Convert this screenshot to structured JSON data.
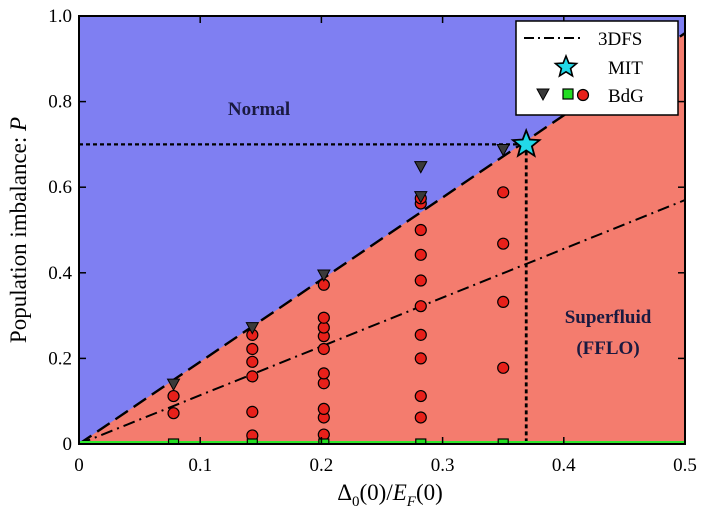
{
  "chart_data": {
    "type": "scatter",
    "xlabel_main": "Δ",
    "xlabel_sub": "0",
    "xlabel_mid": "(0)/",
    "xlabel_italic": "E",
    "xlabel_sub2": "F",
    "xlabel_end": "(0)",
    "ylabel_text": "Population imbalance: ",
    "ylabel_italic": "P",
    "xlim": [
      0,
      0.5
    ],
    "ylim": [
      0,
      1.0
    ],
    "x_ticks": [
      "0",
      "0.1",
      "0.2",
      "0.3",
      "0.4",
      "0.5"
    ],
    "y_ticks": [
      "0",
      "0.2",
      "0.4",
      "0.6",
      "0.8",
      "1.0"
    ],
    "colors": {
      "normal_region": "#7f7ff2",
      "superfluid_region": "#f47c6e",
      "green_line": "#2ee82e",
      "red_marker": "#e8201a",
      "triangle_marker": "#3a3a3a",
      "square_marker": "#22dd22",
      "star_marker": "#22d8e8"
    },
    "regions": {
      "normal": "Normal",
      "superfluid_line1": "Superfluid",
      "superfluid_line2": "(FFLO)"
    },
    "legend": {
      "position": "top-right",
      "entries": [
        "3DFS",
        "MIT",
        "BdG"
      ]
    },
    "boundary_line": {
      "x": [
        0,
        0.5
      ],
      "y": [
        0,
        0.96
      ]
    },
    "dfs_line": {
      "x": [
        0,
        0.5
      ],
      "y": [
        0,
        0.57
      ]
    },
    "mit_point": {
      "x": 0.369,
      "y": 0.7
    },
    "dotted_guides": {
      "x": 0.369,
      "y": 0.7
    },
    "series": [
      {
        "name": "BdG",
        "marker": "circle",
        "points": [
          [
            0.078,
            0.072
          ],
          [
            0.078,
            0.112
          ],
          [
            0.143,
            0.02
          ],
          [
            0.143,
            0.075
          ],
          [
            0.143,
            0.158
          ],
          [
            0.143,
            0.192
          ],
          [
            0.143,
            0.222
          ],
          [
            0.143,
            0.255
          ],
          [
            0.202,
            0.022
          ],
          [
            0.202,
            0.062
          ],
          [
            0.202,
            0.082
          ],
          [
            0.202,
            0.142
          ],
          [
            0.202,
            0.165
          ],
          [
            0.202,
            0.222
          ],
          [
            0.202,
            0.252
          ],
          [
            0.202,
            0.272
          ],
          [
            0.202,
            0.295
          ],
          [
            0.202,
            0.372
          ],
          [
            0.282,
            0.062
          ],
          [
            0.282,
            0.112
          ],
          [
            0.282,
            0.2
          ],
          [
            0.282,
            0.255
          ],
          [
            0.282,
            0.322
          ],
          [
            0.282,
            0.382
          ],
          [
            0.282,
            0.442
          ],
          [
            0.282,
            0.5
          ],
          [
            0.282,
            0.562
          ],
          [
            0.282,
            0.574
          ],
          [
            0.35,
            0.178
          ],
          [
            0.35,
            0.332
          ],
          [
            0.35,
            0.468
          ],
          [
            0.35,
            0.588
          ]
        ]
      },
      {
        "name": "BdG",
        "marker": "triangle",
        "points": [
          [
            0.078,
            0.14
          ],
          [
            0.143,
            0.272
          ],
          [
            0.202,
            0.395
          ],
          [
            0.282,
            0.578
          ],
          [
            0.282,
            0.648
          ],
          [
            0.35,
            0.688
          ]
        ]
      },
      {
        "name": "BdG",
        "marker": "square",
        "points": [
          [
            0.078,
            0.0
          ],
          [
            0.143,
            0.0
          ],
          [
            0.202,
            0.0
          ],
          [
            0.282,
            0.0
          ],
          [
            0.35,
            0.0
          ]
        ]
      }
    ]
  }
}
